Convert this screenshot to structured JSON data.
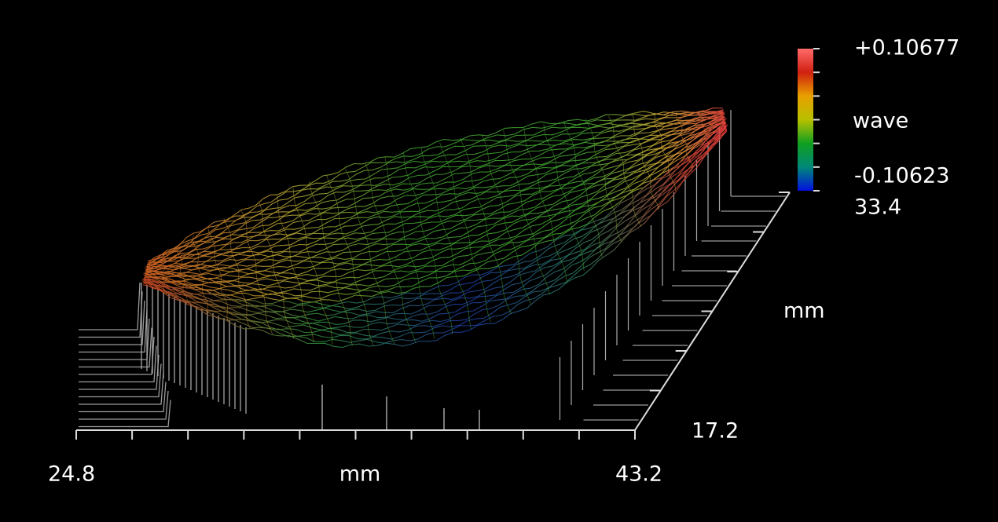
{
  "chart_data": {
    "type": "surface",
    "xlabel": "mm",
    "ylabel": "mm",
    "xlim": [
      24.8,
      43.2
    ],
    "xticks": [
      24.8,
      43.2
    ],
    "ylim": [
      17.2,
      33.4
    ],
    "yticks": [
      17.2,
      33.4
    ],
    "colorbar_label": "wave",
    "clim": [
      -0.10623,
      0.10677
    ],
    "cticks": [
      -0.10623,
      {
        "value": 0.10677,
        "label": "+0.10677"
      }
    ],
    "colormap": [
      "#0010e0",
      "#008878",
      "#10a020",
      "#b8c000",
      "#e8a000",
      "#d02010",
      "#ff6a6a"
    ]
  }
}
